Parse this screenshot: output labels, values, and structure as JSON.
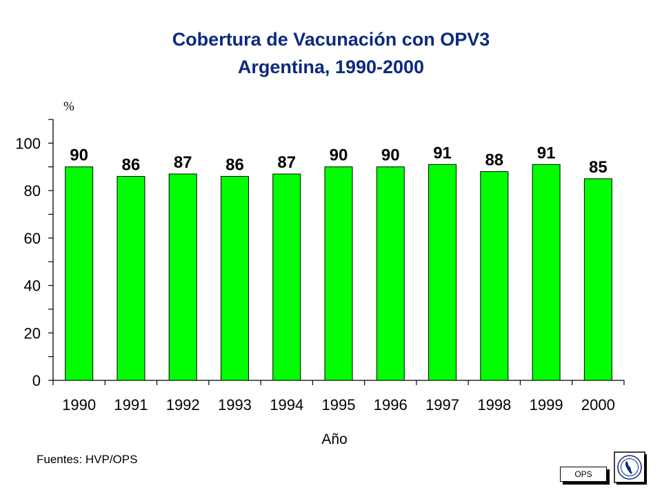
{
  "header": {
    "title_line1": "Cobertura de Vacunación con OPV3",
    "title_line2": "Argentina, 1990-2000"
  },
  "chart_data": {
    "type": "bar",
    "title": "Cobertura de Vacunación con OPV3 Argentina, 1990-2000",
    "xlabel": "Año",
    "ylabel": "%",
    "categories": [
      "1990",
      "1991",
      "1992",
      "1993",
      "1994",
      "1995",
      "1996",
      "1997",
      "1998",
      "1999",
      "2000"
    ],
    "values": [
      90,
      86,
      87,
      86,
      87,
      90,
      90,
      91,
      88,
      91,
      85
    ],
    "ylim": [
      0,
      110
    ],
    "yticks": [
      0,
      20,
      40,
      60,
      80,
      100
    ],
    "bar_color": "#00ff00",
    "grid": false,
    "data_labels": true
  },
  "footer": {
    "source": "Fuentes: HVP/OPS",
    "badge": "OPS"
  },
  "logo": {
    "name": "ops-emblem-icon"
  }
}
